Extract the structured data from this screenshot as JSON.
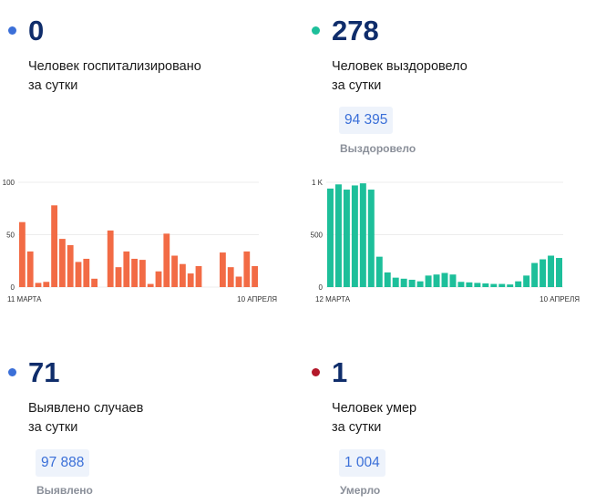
{
  "cards": [
    {
      "id": "hospitalized",
      "value": "0",
      "desc_line1": "Человек госпитализировано",
      "desc_line2": "за сутки",
      "dot_color": "#3b6fd8"
    },
    {
      "id": "recovered",
      "value": "278",
      "desc_line1": "Человек выздоровело",
      "desc_line2": "за сутки",
      "total": "94 395",
      "total_label": "Выздоровело",
      "dot_color": "#1dbf9a"
    },
    {
      "id": "cases",
      "value": "71",
      "desc_line1": "Выявлено случаев",
      "desc_line2": "за сутки",
      "total": "97 888",
      "total_label": "Выявлено",
      "dot_color": "#3b6fd8"
    },
    {
      "id": "deaths",
      "value": "1",
      "desc_line1": "Человек умер",
      "desc_line2": "за сутки",
      "total": "1 004",
      "total_label": "Умерло",
      "dot_color": "#b3182a"
    }
  ],
  "chart_data": [
    {
      "type": "bar",
      "color": "#f26b45",
      "ylim": [
        0,
        100
      ],
      "yticks": [
        "100",
        "50",
        "0"
      ],
      "ytick_values": [
        100,
        50,
        0
      ],
      "x_start_label": "11 МАРТА",
      "x_end_label": "10 АПРЕЛЯ",
      "values": [
        62,
        34,
        4,
        5,
        78,
        46,
        40,
        24,
        27,
        8,
        0,
        54,
        19,
        34,
        27,
        26,
        3,
        15,
        51,
        30,
        22,
        13,
        20,
        0,
        0,
        33,
        19,
        10,
        34,
        20
      ]
    },
    {
      "type": "bar",
      "color": "#1dbf9a",
      "ylim": [
        0,
        1000
      ],
      "yticks": [
        "1 K",
        "500",
        "0"
      ],
      "ytick_values": [
        1000,
        500,
        0
      ],
      "x_start_label": "12 МАРТА",
      "x_end_label": "10 АПРЕЛЯ",
      "values": [
        940,
        980,
        930,
        970,
        990,
        930,
        290,
        140,
        90,
        80,
        70,
        55,
        110,
        120,
        135,
        120,
        50,
        45,
        40,
        35,
        30,
        30,
        25,
        55,
        110,
        230,
        265,
        300,
        278
      ]
    }
  ]
}
